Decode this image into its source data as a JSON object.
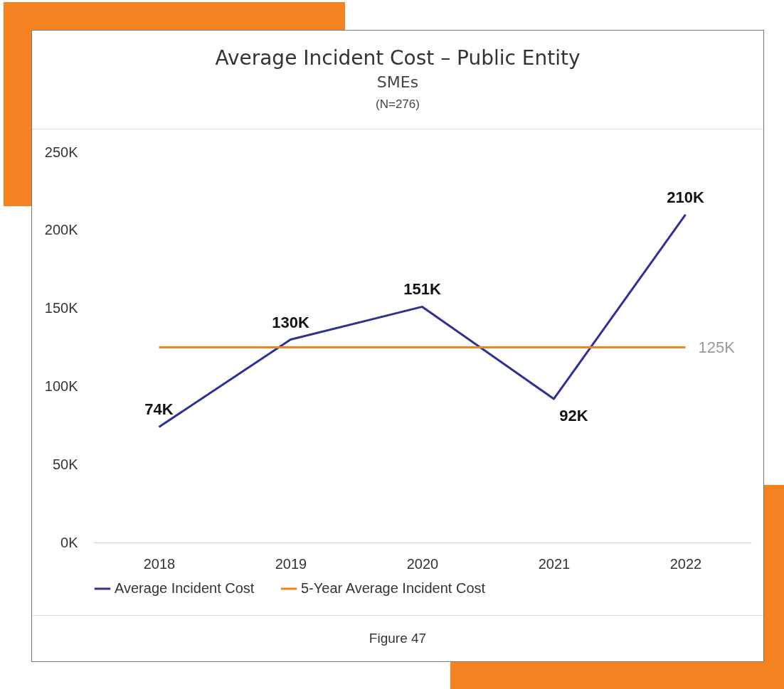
{
  "chart_data": {
    "type": "line",
    "title": "Average Incident Cost – Public Entity",
    "subtitle": "SMEs",
    "annotations": [
      "(N=276)",
      "Figure 47"
    ],
    "categories": [
      "2018",
      "2019",
      "2020",
      "2021",
      "2022"
    ],
    "series": [
      {
        "name": "Average Incident Cost",
        "color": "#2e3192",
        "values": [
          74000,
          130000,
          151000,
          92000,
          210000
        ],
        "value_labels": [
          "74K",
          "130K",
          "151K",
          "92K",
          "210K"
        ]
      },
      {
        "name": "5-Year Average Incident Cost",
        "color": "#f58220",
        "values": [
          125000,
          125000,
          125000,
          125000,
          125000
        ],
        "value_labels": [
          null,
          null,
          null,
          null,
          "125K"
        ]
      }
    ],
    "ylim": [
      0,
      250000
    ],
    "yticks": [
      {
        "value": 0,
        "label": "0K"
      },
      {
        "value": 50000,
        "label": "50K"
      },
      {
        "value": 100000,
        "label": "100K"
      },
      {
        "value": 150000,
        "label": "150K"
      },
      {
        "value": 200000,
        "label": "200K"
      },
      {
        "value": 250000,
        "label": "250K"
      }
    ],
    "grid": false,
    "legend": "bottom",
    "marker": "none",
    "line_style": "solid"
  }
}
